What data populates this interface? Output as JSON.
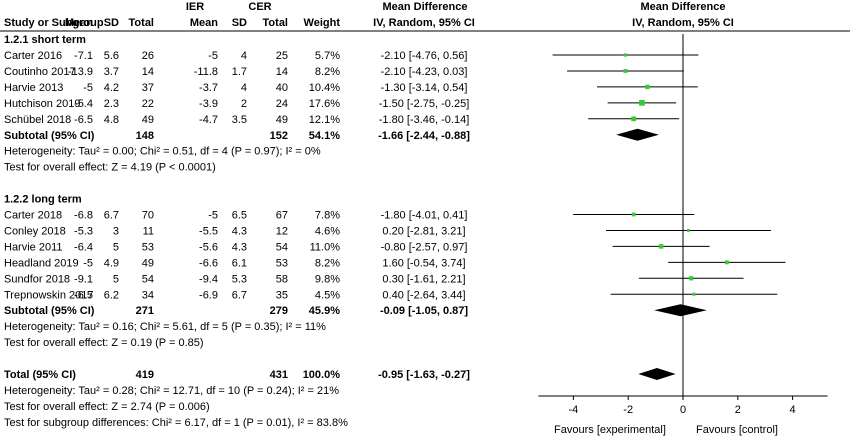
{
  "chart_data": {
    "type": "forest",
    "headers": {
      "study": "Study or Subgroup",
      "group_exp": "IER",
      "group_ctrl": "CER",
      "mean": "Mean",
      "sd": "SD",
      "total": "Total",
      "weight": "Weight",
      "md": "Mean Difference",
      "method": "IV, Random, 95% CI"
    },
    "subgroups": [
      {
        "title": "1.2.1 short term",
        "studies": [
          {
            "name": "Carter 2016",
            "e_mean": "-7.1",
            "e_sd": "5.6",
            "e_total": "26",
            "c_mean": "-5",
            "c_sd": "4",
            "c_total": "25",
            "weight": "5.7%",
            "ci_text": "-2.10 [-4.76, 0.56]",
            "md": -2.1,
            "lo": -4.76,
            "hi": 0.56,
            "w": 5.7
          },
          {
            "name": "Coutinho 2017",
            "e_mean": "-13.9",
            "e_sd": "3.7",
            "e_total": "14",
            "c_mean": "-11.8",
            "c_sd": "1.7",
            "c_total": "14",
            "weight": "8.2%",
            "ci_text": "-2.10 [-4.23, 0.03]",
            "md": -2.1,
            "lo": -4.23,
            "hi": 0.03,
            "w": 8.2
          },
          {
            "name": "Harvie 2013",
            "e_mean": "-5",
            "e_sd": "4.2",
            "e_total": "37",
            "c_mean": "-3.7",
            "c_sd": "4",
            "c_total": "40",
            "weight": "10.4%",
            "ci_text": "-1.30 [-3.14, 0.54]",
            "md": -1.3,
            "lo": -3.14,
            "hi": 0.54,
            "w": 10.4
          },
          {
            "name": "Hutchison 2019",
            "e_mean": "-5.4",
            "e_sd": "2.3",
            "e_total": "22",
            "c_mean": "-3.9",
            "c_sd": "2",
            "c_total": "24",
            "weight": "17.6%",
            "ci_text": "-1.50 [-2.75, -0.25]",
            "md": -1.5,
            "lo": -2.75,
            "hi": -0.25,
            "w": 17.6
          },
          {
            "name": "Schübel 2018",
            "e_mean": "-6.5",
            "e_sd": "4.8",
            "e_total": "49",
            "c_mean": "-4.7",
            "c_sd": "3.5",
            "c_total": "49",
            "weight": "12.1%",
            "ci_text": "-1.80 [-3.46, -0.14]",
            "md": -1.8,
            "lo": -3.46,
            "hi": -0.14,
            "w": 12.1
          }
        ],
        "subtotal": {
          "label": "Subtotal (95% CI)",
          "e_total": "148",
          "c_total": "152",
          "weight": "54.1%",
          "ci_text": "-1.66 [-2.44, -0.88]",
          "md": -1.66,
          "lo": -2.44,
          "hi": -0.88
        },
        "heterogeneity": "Heterogeneity: Tau² = 0.00; Chi² = 0.51, df = 4 (P = 0.97); I² = 0%",
        "overall_test": "Test for overall effect: Z = 4.19 (P < 0.0001)"
      },
      {
        "title": "1.2.2 long term",
        "studies": [
          {
            "name": "Carter 2018",
            "e_mean": "-6.8",
            "e_sd": "6.7",
            "e_total": "70",
            "c_mean": "-5",
            "c_sd": "6.5",
            "c_total": "67",
            "weight": "7.8%",
            "ci_text": "-1.80 [-4.01, 0.41]",
            "md": -1.8,
            "lo": -4.01,
            "hi": 0.41,
            "w": 7.8
          },
          {
            "name": "Conley 2018",
            "e_mean": "-5.3",
            "e_sd": "3",
            "e_total": "11",
            "c_mean": "-5.5",
            "c_sd": "4.3",
            "c_total": "12",
            "weight": "4.6%",
            "ci_text": "0.20 [-2.81, 3.21]",
            "md": 0.2,
            "lo": -2.81,
            "hi": 3.21,
            "w": 4.6
          },
          {
            "name": "Harvie 2011",
            "e_mean": "-6.4",
            "e_sd": "5",
            "e_total": "53",
            "c_mean": "-5.6",
            "c_sd": "4.3",
            "c_total": "54",
            "weight": "11.0%",
            "ci_text": "-0.80 [-2.57, 0.97]",
            "md": -0.8,
            "lo": -2.57,
            "hi": 0.97,
            "w": 11.0
          },
          {
            "name": "Headland 2019",
            "e_mean": "-5",
            "e_sd": "4.9",
            "e_total": "49",
            "c_mean": "-6.6",
            "c_sd": "6.1",
            "c_total": "53",
            "weight": "8.2%",
            "ci_text": "1.60 [-0.54, 3.74]",
            "md": 1.6,
            "lo": -0.54,
            "hi": 3.74,
            "w": 8.2
          },
          {
            "name": "Sundfor 2018",
            "e_mean": "-9.1",
            "e_sd": "5",
            "e_total": "54",
            "c_mean": "-9.4",
            "c_sd": "5.3",
            "c_total": "58",
            "weight": "9.8%",
            "ci_text": "0.30 [-1.61, 2.21]",
            "md": 0.3,
            "lo": -1.61,
            "hi": 2.21,
            "w": 9.8
          },
          {
            "name": "Trepnowskin 2017",
            "e_mean": "-6.5",
            "e_sd": "6.2",
            "e_total": "34",
            "c_mean": "-6.9",
            "c_sd": "6.7",
            "c_total": "35",
            "weight": "4.5%",
            "ci_text": "0.40 [-2.64, 3.44]",
            "md": 0.4,
            "lo": -2.64,
            "hi": 3.44,
            "w": 4.5
          }
        ],
        "subtotal": {
          "label": "Subtotal (95% CI)",
          "e_total": "271",
          "c_total": "279",
          "weight": "45.9%",
          "ci_text": "-0.09 [-1.05, 0.87]",
          "md": -0.09,
          "lo": -1.05,
          "hi": 0.87
        },
        "heterogeneity": "Heterogeneity: Tau² = 0.16; Chi² = 5.61, df = 5 (P = 0.35); I² = 11%",
        "overall_test": "Test for overall effect: Z = 0.19 (P = 0.85)"
      }
    ],
    "total": {
      "label": "Total (95% CI)",
      "e_total": "419",
      "c_total": "431",
      "weight": "100.0%",
      "ci_text": "-0.95 [-1.63, -0.27]",
      "md": -0.95,
      "lo": -1.63,
      "hi": -0.27
    },
    "footer": [
      "Heterogeneity: Tau² = 0.28; Chi² = 12.71, df = 10 (P = 0.24); I² = 21%",
      "Test for overall effect: Z = 2.74 (P = 0.006)",
      "Test for subgroup differences: Chi² = 6.17, df = 1 (P = 0.01), I² = 83.8%"
    ],
    "axis": {
      "min": -4,
      "max": 4,
      "ticks": [
        -4,
        -2,
        0,
        2,
        4
      ]
    },
    "favours_left": "Favours [experimental]",
    "favours_right": "Favours [control]",
    "colors": {
      "square": "#33cc33",
      "diamond": "#000000",
      "line": "#000000"
    }
  }
}
